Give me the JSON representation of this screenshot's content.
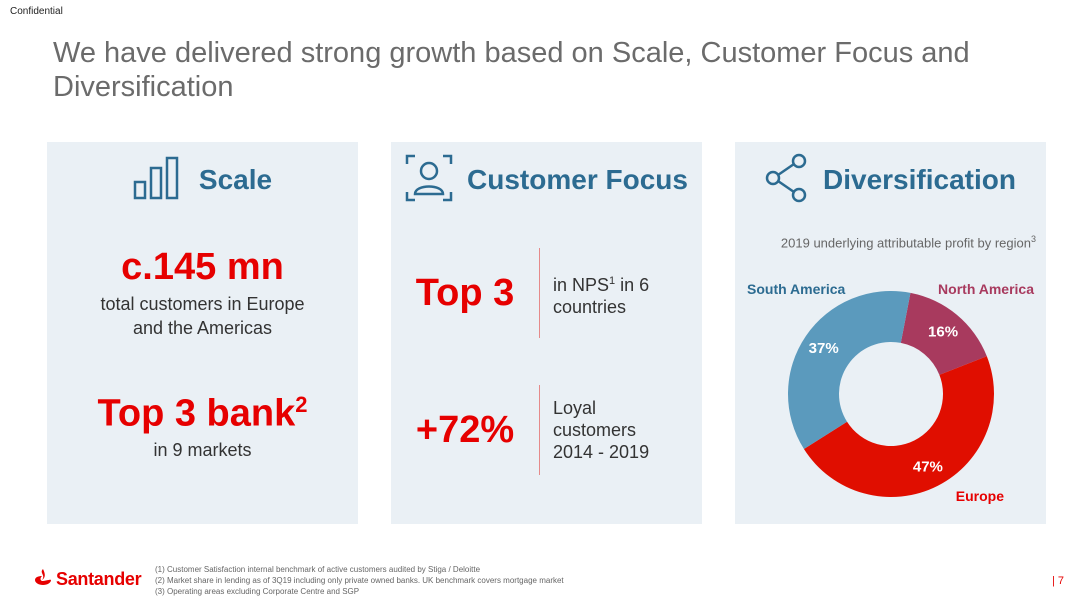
{
  "header": {
    "confidential": "Confidential",
    "title": "We have delivered strong growth based on Scale, Customer Focus and Diversification"
  },
  "scale": {
    "title": "Scale",
    "icon": "bar-chart-icon",
    "metric1_value": "c.145 mn",
    "metric1_desc_line1": "total customers in Europe",
    "metric1_desc_line2": "and the Americas",
    "metric2_value": "Top 3 bank",
    "metric2_sup": "2",
    "metric2_desc": "in 9 markets"
  },
  "customer_focus": {
    "title": "Customer Focus",
    "icon": "person-scan-icon",
    "metric1_value": "Top 3",
    "metric1_desc_pre": "in NPS",
    "metric1_desc_sup": "1",
    "metric1_desc_post": " in 6",
    "metric1_desc_line2": "countries",
    "metric2_value": "+72%",
    "metric2_desc_line1": "Loyal",
    "metric2_desc_line2": "customers",
    "metric2_desc_line3": "2014 - 2019"
  },
  "diversification": {
    "title": "Diversification",
    "icon": "share-icon",
    "subtitle": "2019 underlying attributable profit by region",
    "subtitle_sup": "3"
  },
  "chart_data": {
    "type": "pie",
    "title": "2019 underlying attributable profit by region",
    "donut": true,
    "categories": [
      "North America",
      "Europe",
      "South America"
    ],
    "values": [
      16,
      47,
      37
    ],
    "labels": [
      "16%",
      "47%",
      "37%"
    ],
    "colors": [
      "#a83a5e",
      "#e00e00",
      "#5b9abd"
    ]
  },
  "footer": {
    "brand": "Santander",
    "footnote1": "(1)   Customer Satisfaction internal benchmark of active customers audited by Stiga / Deloitte",
    "footnote2": "(2)   Market share in lending as of 3Q19 including only private owned banks. UK benchmark covers mortgage market",
    "footnote3": "(3)   Operating areas excluding Corporate Centre and SGP",
    "page": "| 7"
  }
}
